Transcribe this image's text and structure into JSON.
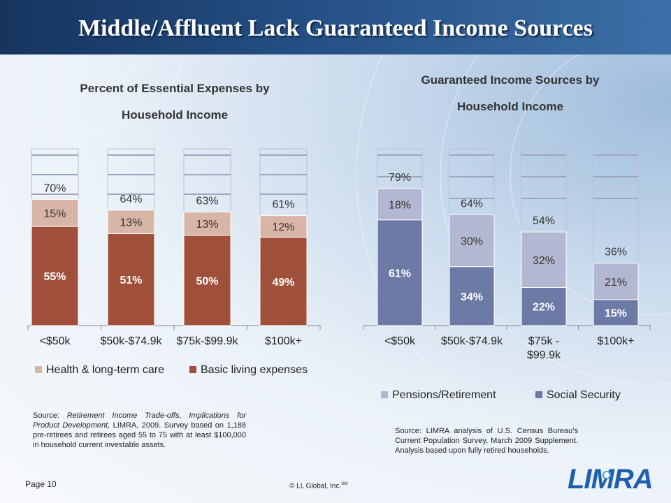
{
  "slide": {
    "title": "Middle/Affluent Lack Guaranteed Income Sources",
    "page_label": "Page 10",
    "copyright": "© LL Global, Inc.",
    "copyright_mark": "SM",
    "logo_text": "LIMRA"
  },
  "left": {
    "title_line1": "Percent of Essential Expenses by",
    "title_line2": "Household Income",
    "source_label": "Source: ",
    "source_title": "Retirement Income Trade-offs, Implications for Product Development,",
    "source_rest": " LIMRA, 2009.  Survey based on 1,188 pre-retirees and retirees aged 55 to 75 with at least $100,000 in household current investable assets."
  },
  "right": {
    "title_line1": "Guaranteed Income Sources by",
    "title_line2": "Household Income",
    "source_text": "Source: LIMRA analysis of U.S. Census Bureau’s Current Population Survey, March 2009 Supplement. Analysis based upon fully retired households."
  },
  "chart_data": [
    {
      "type": "bar",
      "stacked": true,
      "title": "Percent of Essential Expenses by Household Income",
      "categories": [
        "<$50k",
        "$50k-$74.9k",
        "$75k-$99.9k",
        "$100k+"
      ],
      "series": [
        {
          "name": "Basic living expenses",
          "values": [
            55,
            51,
            50,
            49
          ],
          "labels": [
            "55%",
            "51%",
            "50%",
            "49%"
          ],
          "color": "#a0503a"
        },
        {
          "name": "Health & long-term care",
          "values": [
            15,
            13,
            13,
            12
          ],
          "labels": [
            "15%",
            "13%",
            "13%",
            "12%"
          ],
          "color": "#d9b5a8"
        }
      ],
      "totals": [
        "70%",
        "64%",
        "63%",
        "61%"
      ],
      "ylim": [
        0,
        100
      ],
      "legend": "bottom",
      "legend_order": [
        "Health & long-term care",
        "Basic living expenses"
      ]
    },
    {
      "type": "bar",
      "stacked": true,
      "title": "Guaranteed Income Sources by Household Income",
      "categories": [
        "<$50k",
        "$50k-$74.9k",
        "$75k - $99.9k",
        "$100k+"
      ],
      "category_lines": [
        [
          "<$50k"
        ],
        [
          "$50k-$74.9k"
        ],
        [
          "$75k -",
          "$99.9k"
        ],
        [
          "$100k+"
        ]
      ],
      "series": [
        {
          "name": "Social Security",
          "values": [
            61,
            34,
            22,
            15
          ],
          "labels": [
            "61%",
            "34%",
            "22%",
            "15%"
          ],
          "color": "#6d7aa6"
        },
        {
          "name": "Pensions/Retirement",
          "values": [
            18,
            30,
            32,
            21
          ],
          "labels": [
            "18%",
            "30%",
            "32%",
            "21%"
          ],
          "color": "#b3b7d1"
        }
      ],
      "totals": [
        "79%",
        "64%",
        "54%",
        "36%"
      ],
      "ylim": [
        0,
        100
      ],
      "legend": "bottom",
      "legend_order": [
        "Pensions/Retirement",
        "Social Security"
      ]
    }
  ]
}
